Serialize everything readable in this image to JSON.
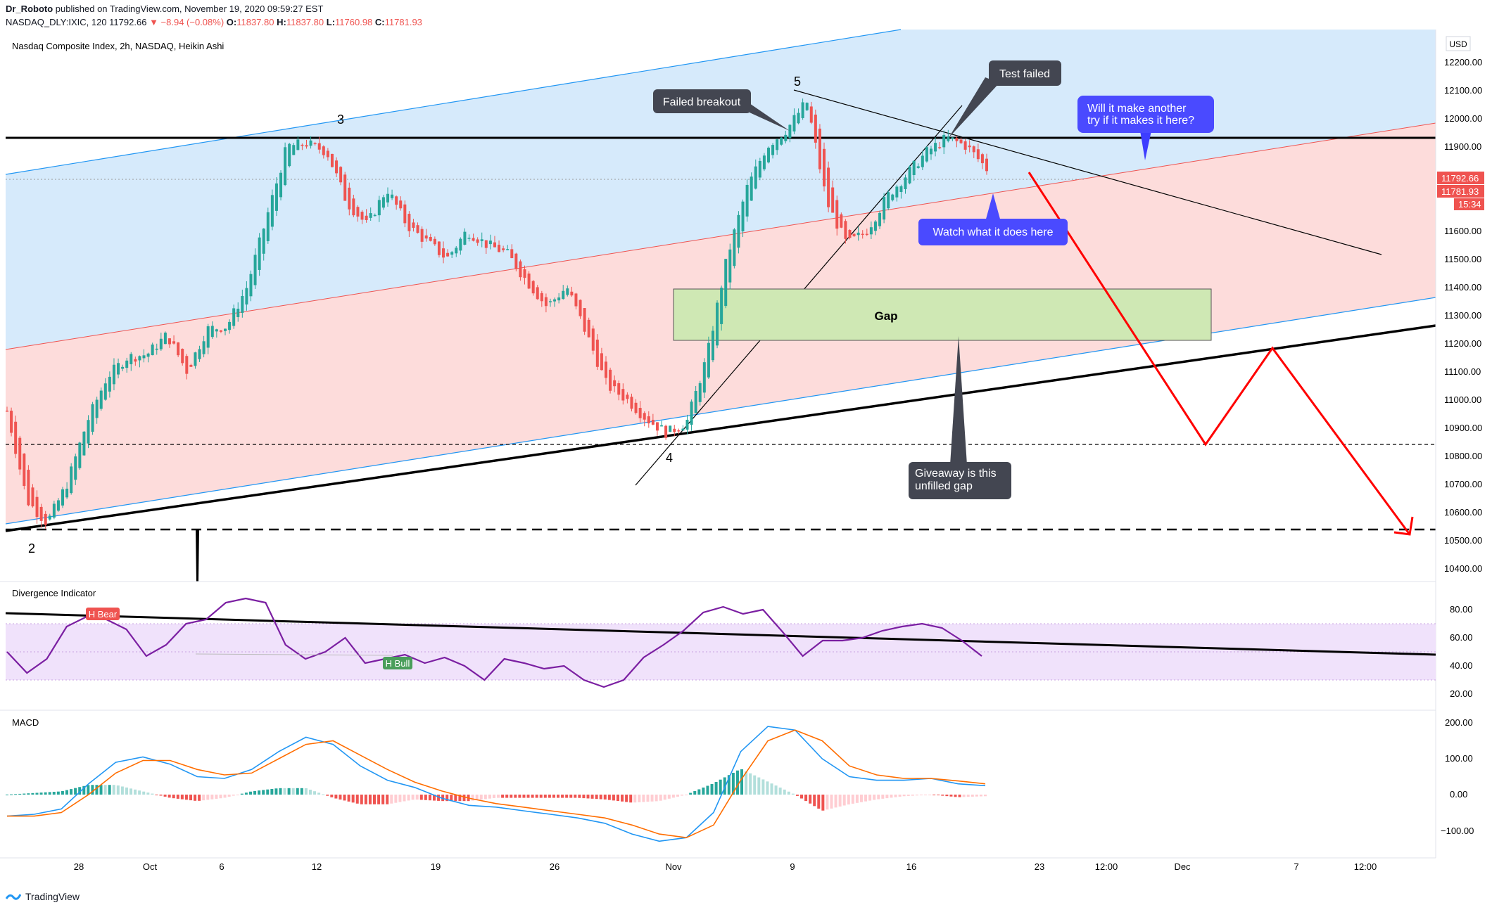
{
  "header": {
    "publisher": "Dr_Roboto",
    "published_text": "published on TradingView.com, November 19, 2020 09:59:27 EST",
    "symbol_line": "NASDAQ_DLY:IXIC, 120",
    "last": "11792.66",
    "change": "▼ −8.94 (−0.08%)",
    "o_label": "O:",
    "o_value": "11837.80",
    "h_label": "H:",
    "h_value": "11837.80",
    "l_label": "L:",
    "l_value": "11760.98",
    "c_label": "C:",
    "c_value": "11781.93"
  },
  "main_pane": {
    "title": "Nasdaq Composite Index, 2h, NASDAQ, Heikin Ashi",
    "currency": "USD",
    "price_ticks": [
      "12200.00",
      "12100.00",
      "12000.00",
      "11900.00",
      "11600.00",
      "11500.00",
      "11400.00",
      "11300.00",
      "11200.00",
      "11100.00",
      "11000.00",
      "10900.00",
      "10800.00",
      "10700.00",
      "10600.00",
      "10500.00",
      "10400.00"
    ],
    "price_labels": [
      {
        "text": "11792.66",
        "color": "#ef5350"
      },
      {
        "text": "11781.93",
        "color": "#ef5350"
      },
      {
        "text": "15:34",
        "color": "#ef5350"
      }
    ],
    "wave_labels": [
      "2",
      "3",
      "4",
      "5"
    ],
    "annotations": {
      "failed_breakout": "Failed breakout",
      "test_failed": "Test failed",
      "will_it": [
        "Will it make another",
        "try if it makes it here?"
      ],
      "watch": "Watch what it does here",
      "gap": "Gap",
      "giveaway": [
        "Giveaway is this",
        "unfilled gap"
      ]
    }
  },
  "divergence_pane": {
    "title": "Divergence Indicator",
    "ticks": [
      "80.00",
      "60.00",
      "40.00",
      "20.00"
    ],
    "badges": {
      "bear": "H Bear",
      "bull": "H Bull"
    }
  },
  "macd_pane": {
    "title": "MACD",
    "ticks": [
      "200.00",
      "100.00",
      "0.00",
      "−100.00"
    ]
  },
  "time_axis": [
    "28",
    "Oct",
    "6",
    "12",
    "19",
    "26",
    "Nov",
    "9",
    "16",
    "23",
    "12:00",
    "Dec",
    "7",
    "12:00"
  ],
  "footer": {
    "brand": "TradingView"
  },
  "colors": {
    "up": "#26a69a",
    "down": "#ef5350",
    "channel_blue": "#d6eafb",
    "channel_red": "#fddcdb",
    "gap_fill": "#cfe8b4",
    "rsi": "#7b1fa2",
    "macd": "#2196f3",
    "signal": "#ff6d00",
    "projection": "#ff0000"
  },
  "chart_data": [
    {
      "type": "candlestick",
      "title": "Nasdaq Composite Index, 2h, NASDAQ, Heikin Ashi",
      "ylim": [
        10350,
        12300
      ],
      "x_ticks": [
        "28",
        "Oct",
        "6",
        "12",
        "19",
        "26",
        "Nov",
        "9",
        "16",
        "23",
        "12:00",
        "Dec",
        "7",
        "12:00"
      ],
      "close_path": [
        10960,
        10640,
        10560,
        10700,
        10920,
        11080,
        11150,
        11160,
        11230,
        11100,
        11250,
        11260,
        11400,
        11650,
        11900,
        11910,
        11880,
        11700,
        11620,
        11750,
        11620,
        11560,
        11500,
        11600,
        11550,
        11520,
        11420,
        11330,
        11400,
        11230,
        11050,
        11000,
        10930,
        10880,
        10920,
        11150,
        11500,
        11750,
        11900,
        11960,
        12060,
        11700,
        11550,
        11600,
        11720,
        11800,
        11880,
        11930,
        11900,
        11820
      ],
      "horizontal_levels": [
        11930,
        10830,
        10530
      ],
      "gap_zone": [
        11210,
        11390
      ]
    },
    {
      "type": "line",
      "title": "Divergence Indicator",
      "ylim": [
        10,
        90
      ],
      "values": [
        50,
        35,
        45,
        68,
        75,
        73,
        66,
        47,
        55,
        70,
        73,
        85,
        88,
        85,
        55,
        45,
        50,
        60,
        42,
        45,
        48,
        42,
        46,
        40,
        30,
        45,
        42,
        38,
        40,
        30,
        25,
        30,
        46,
        55,
        65,
        78,
        82,
        77,
        80,
        64,
        47,
        58,
        58,
        60,
        65,
        68,
        70,
        67,
        58,
        47
      ]
    },
    {
      "type": "bar",
      "title": "MACD",
      "ylim": [
        -140,
        220
      ],
      "series": [
        {
          "name": "MACD",
          "values": [
            -60,
            -55,
            -40,
            30,
            90,
            105,
            85,
            50,
            45,
            70,
            120,
            160,
            140,
            80,
            40,
            20,
            -10,
            -30,
            -35,
            -45,
            -55,
            -65,
            -80,
            -110,
            -130,
            -120,
            -50,
            120,
            190,
            180,
            100,
            50,
            40,
            40,
            45,
            30,
            25
          ]
        },
        {
          "name": "Signal",
          "values": [
            -60,
            -60,
            -50,
            0,
            60,
            95,
            95,
            70,
            55,
            60,
            100,
            140,
            150,
            110,
            70,
            35,
            10,
            -10,
            -25,
            -35,
            -45,
            -55,
            -65,
            -85,
            -110,
            -120,
            -85,
            40,
            150,
            180,
            150,
            80,
            55,
            45,
            45,
            38,
            30
          ]
        }
      ]
    }
  ]
}
